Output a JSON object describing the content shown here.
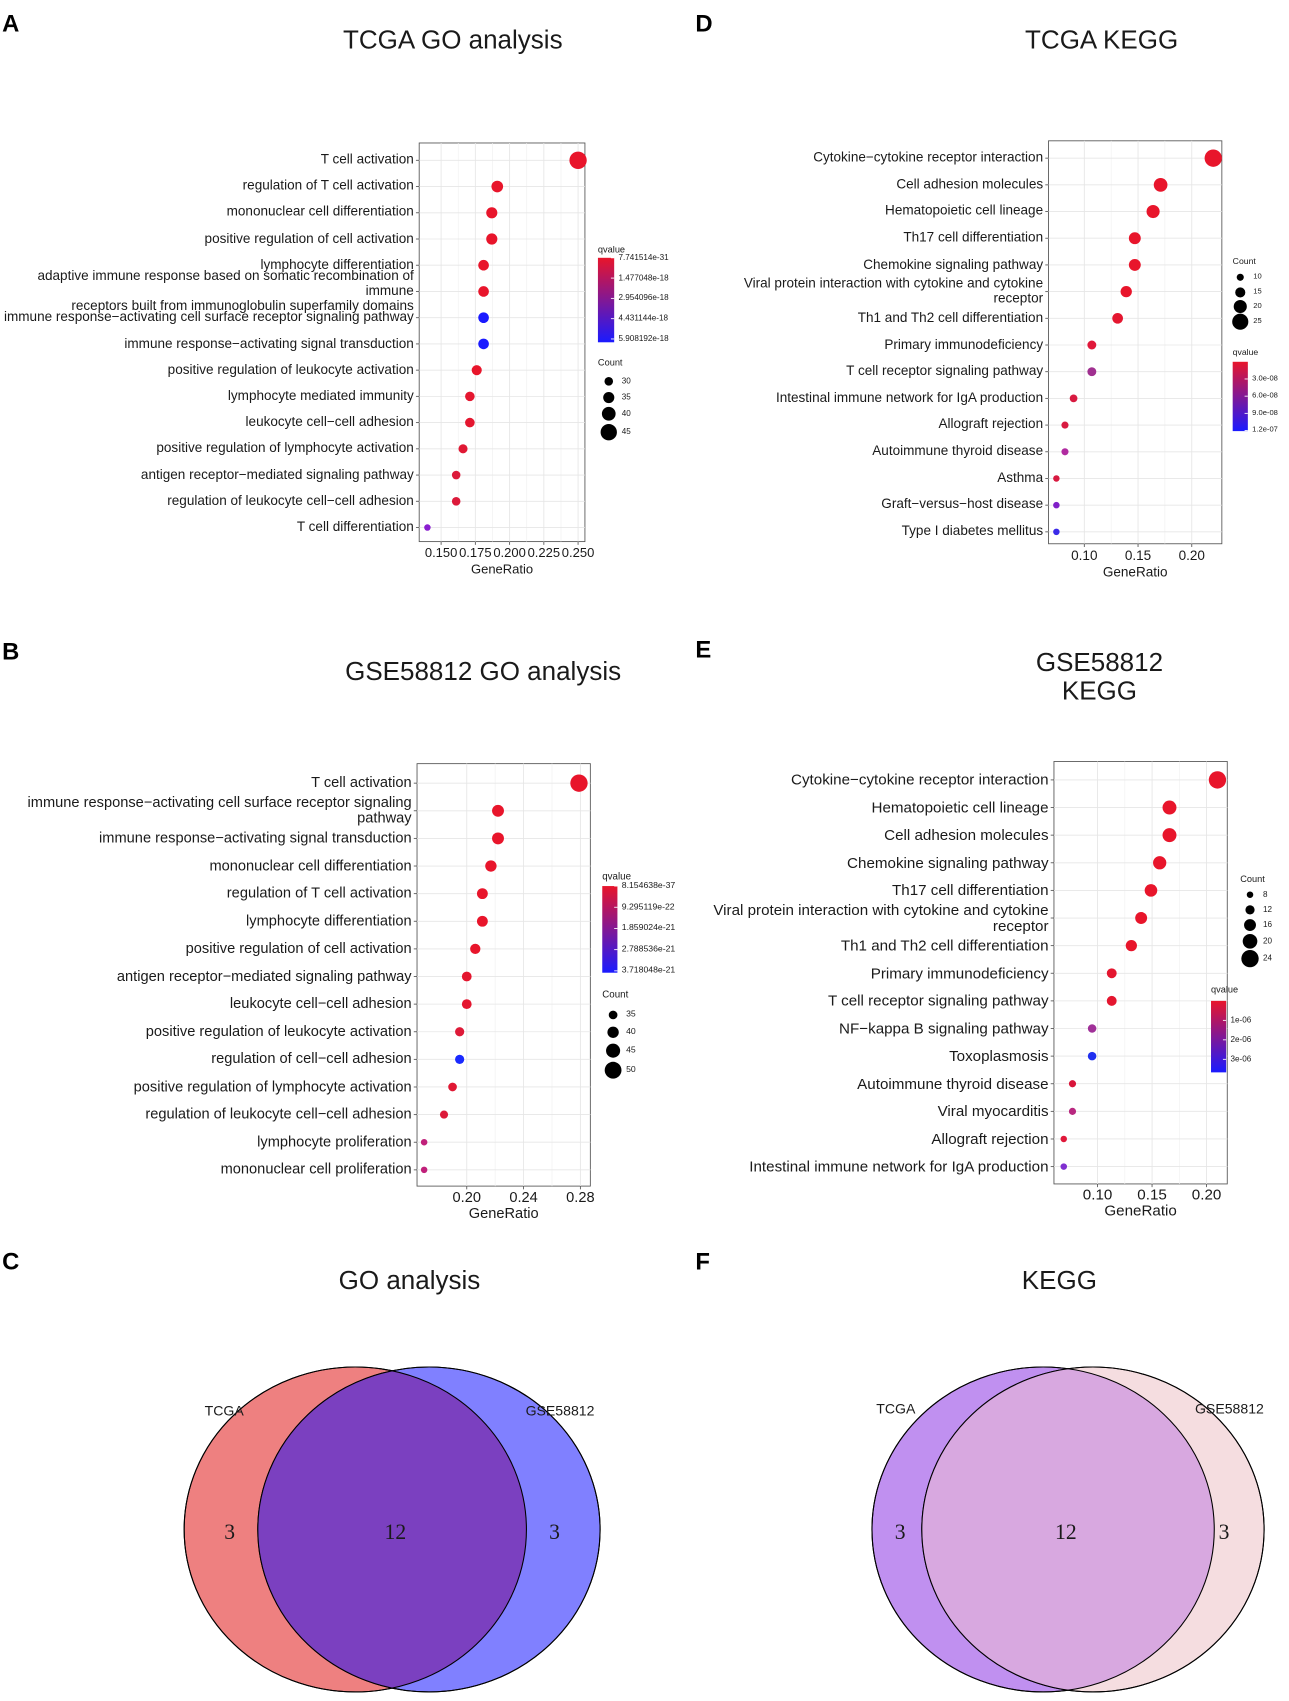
{
  "chart_data": [
    {
      "type": "dot",
      "panel": "A",
      "title": "TCGA GO analysis",
      "xlabel": "GeneRatio",
      "categories": [
        "T cell activation",
        "regulation of T cell activation",
        "mononuclear cell differentiation",
        "positive regulation of cell activation",
        "lymphocyte differentiation",
        "adaptive immune response based on somatic recombination of immune\nreceptors built from immunoglobulin superfamily domains",
        "immune response−activating cell surface receptor signaling pathway",
        "immune response−activating signal transduction",
        "positive regulation of leukocyte activation",
        "lymphocyte mediated immunity",
        "leukocyte cell−cell adhesion",
        "positive regulation of lymphocyte activation",
        "antigen receptor−mediated signaling pathway",
        "regulation of leukocyte cell−cell adhesion",
        "T cell differentiation"
      ],
      "values": [
        0.25,
        0.191,
        0.187,
        0.187,
        0.181,
        0.181,
        0.181,
        0.181,
        0.176,
        0.171,
        0.171,
        0.166,
        0.161,
        0.161,
        0.14
      ],
      "sizes": [
        47,
        36,
        35,
        35,
        34,
        34,
        34,
        34,
        33,
        32,
        32,
        31,
        30,
        30,
        26
      ],
      "colors": [
        "#e8152b",
        "#e8152b",
        "#e8152b",
        "#e8152b",
        "#e8152b",
        "#e8152b",
        "#1a1aff",
        "#1a1aff",
        "#e8152b",
        "#e4162f",
        "#e4162f",
        "#e01834",
        "#dc1a3a",
        "#dc1a3a",
        "#8a1fd0"
      ],
      "xlim": [
        0.134,
        0.255
      ],
      "xticks": [
        {
          "value": 0.15,
          "label": "0.150"
        },
        0.175,
        {
          "value": 0.2,
          "label": "0.200"
        },
        0.225,
        {
          "value": 0.25,
          "label": "0.250"
        }
      ],
      "color_legend_title": "qvalue",
      "clim": [
        0,
        6.15e-18
      ],
      "cticks": [
        {
          "value": 7.741514e-31,
          "label": "7.741514e-31"
        },
        {
          "value": 1.477048e-18,
          "label": "1.477048e-18"
        },
        {
          "value": 2.954096e-18,
          "label": "2.954096e-18"
        },
        {
          "value": 4.431144e-18,
          "label": "4.431144e-18"
        },
        {
          "value": 5.908192e-18,
          "label": "5.908192e-18"
        }
      ],
      "low_color": "#e8152b",
      "high_color": "#1a1aff",
      "size_legend_title": "Count",
      "size_ticks": [
        30,
        35,
        40,
        45
      ],
      "grid": true
    },
    {
      "type": "dot",
      "panel": "B",
      "title": "GSE58812 GO analysis",
      "xlabel": "GeneRatio",
      "categories": [
        "T cell activation",
        "immune response−activating cell surface receptor signaling\npathway",
        "immune response−activating signal transduction",
        "mononuclear cell differentiation",
        "regulation of T cell activation",
        "lymphocyte differentiation",
        "positive regulation of cell activation",
        "antigen receptor−mediated signaling pathway",
        "leukocyte cell−cell adhesion",
        "positive regulation of leukocyte activation",
        "regulation of cell−cell adhesion",
        "positive regulation of lymphocyte activation",
        "regulation of leukocyte cell−cell adhesion",
        "lymphocyte proliferation",
        "mononuclear cell proliferation"
      ],
      "values": [
        0.279,
        0.222,
        0.222,
        0.217,
        0.211,
        0.211,
        0.206,
        0.2,
        0.2,
        0.195,
        0.195,
        0.19,
        0.184,
        0.17,
        0.17
      ],
      "sizes": [
        51,
        41,
        41,
        40,
        39,
        39,
        38,
        37,
        37,
        36,
        36,
        35,
        34,
        31,
        31
      ],
      "colors": [
        "#e8152b",
        "#e8152b",
        "#e8152b",
        "#e8152b",
        "#e8152b",
        "#e8152b",
        "#e8152b",
        "#e4162f",
        "#e4162f",
        "#de1a38",
        "#1a2aff",
        "#e01834",
        "#dc1a3a",
        "#c0207a",
        "#c0207a"
      ],
      "xlim": [
        0.165,
        0.287
      ],
      "xticks": [
        {
          "value": 0.2,
          "label": "0.20"
        },
        0.24,
        0.28
      ],
      "color_legend_title": "qvalue",
      "clim": [
        0,
        3.8e-21
      ],
      "cticks": [
        {
          "value": 8.154638e-37,
          "label": "8.154638e-37"
        },
        {
          "value": 9.295119e-22,
          "label": "9.295119e-22"
        },
        {
          "value": 1.859024e-21,
          "label": "1.859024e-21"
        },
        {
          "value": 2.788536e-21,
          "label": "2.788536e-21"
        },
        {
          "value": 3.718048e-21,
          "label": "3.718048e-21"
        }
      ],
      "low_color": "#e8152b",
      "high_color": "#1a1aff",
      "size_legend_title": "Count",
      "size_ticks": [
        35,
        40,
        45,
        50
      ],
      "grid": true
    },
    {
      "type": "venn",
      "panel": "C",
      "title": "GO analysis",
      "sets": [
        "TCGA",
        "GSE58812"
      ],
      "values": [
        3,
        12,
        3
      ],
      "colors": [
        "#ee8080",
        "#7b40c0",
        "#8080ff"
      ]
    },
    {
      "type": "dot",
      "panel": "D",
      "title": "TCGA KEGG",
      "xlabel": "GeneRatio",
      "categories": [
        "Cytokine−cytokine receptor interaction",
        "Cell adhesion molecules",
        "Hematopoietic cell lineage",
        "Th17 cell differentiation",
        "Chemokine signaling pathway",
        "Viral protein interaction with cytokine and cytokine\nreceptor",
        "Th1 and Th2 cell differentiation",
        "Primary immunodeficiency",
        "T cell receptor signaling pathway",
        "Intestinal immune network for IgA production",
        "Allograft rejection",
        "Autoimmune thyroid disease",
        "Asthma",
        "Graft−versus−host disease",
        "Type I diabetes mellitus"
      ],
      "values": [
        0.22,
        0.171,
        0.164,
        0.147,
        0.147,
        0.139,
        0.131,
        0.107,
        0.107,
        0.09,
        0.082,
        0.082,
        0.074,
        0.074,
        0.074
      ],
      "sizes": [
        27,
        21,
        20,
        18,
        18,
        17,
        16,
        13,
        13,
        11,
        10,
        10,
        9,
        9,
        9
      ],
      "colors": [
        "#e8152b",
        "#e8152b",
        "#e8152b",
        "#e8152b",
        "#e8152b",
        "#e8152b",
        "#e4162f",
        "#e0183a",
        "#a03090",
        "#d81a40",
        "#d81a40",
        "#b02aa0",
        "#d81a40",
        "#8020c8",
        "#3a2ae8"
      ],
      "xlim": [
        0.0667,
        0.228
      ],
      "xticks": [
        {
          "value": 0.1,
          "label": "0.10"
        },
        0.15,
        {
          "value": 0.2,
          "label": "0.20"
        }
      ],
      "color_legend_title": "qvalue",
      "clim": [
        0,
        1.21e-07
      ],
      "cticks": [
        {
          "value": 3e-08,
          "label": "3.0e-08"
        },
        {
          "value": 6e-08,
          "label": "6.0e-08"
        },
        {
          "value": 9e-08,
          "label": "9.0e-08"
        },
        {
          "value": 1.2e-07,
          "label": "1.2e-07"
        }
      ],
      "low_color": "#e8152b",
      "high_color": "#1a1aff",
      "size_legend_title": "Count",
      "size_ticks": [
        10,
        15,
        20,
        25
      ],
      "grid": true
    },
    {
      "type": "dot",
      "panel": "E",
      "title": "GSE58812  KEGG",
      "xlabel": "GeneRatio",
      "categories": [
        "Cytokine−cytokine receptor interaction",
        "Hematopoietic cell lineage",
        "Cell adhesion molecules",
        "Chemokine signaling pathway",
        "Th17 cell differentiation",
        "Viral protein interaction with cytokine and cytokine\nreceptor",
        "Th1 and Th2 cell differentiation",
        "Primary immunodeficiency",
        "T cell receptor signaling pathway",
        "NF−kappa B signaling pathway",
        "Toxoplasmosis",
        "Autoimmune thyroid disease",
        "Viral myocarditis",
        "Allograft rejection",
        "Intestinal immune network for IgA production"
      ],
      "values": [
        0.21,
        0.166,
        0.166,
        0.157,
        0.149,
        0.14,
        0.131,
        0.113,
        0.113,
        0.095,
        0.095,
        0.077,
        0.077,
        0.069,
        0.069
      ],
      "sizes": [
        24,
        19,
        19,
        18,
        17,
        16,
        15,
        13,
        13,
        11,
        11,
        9,
        9,
        8,
        8
      ],
      "colors": [
        "#e8152b",
        "#e8152b",
        "#e8152b",
        "#e8152b",
        "#e8152b",
        "#e8152b",
        "#e8152b",
        "#e4162f",
        "#e4162f",
        "#a03098",
        "#2030f0",
        "#d8153a",
        "#b82880",
        "#e0183a",
        "#8030d0"
      ],
      "xlim": [
        0.06,
        0.219
      ],
      "xticks": [
        {
          "value": 0.1,
          "label": "0.10"
        },
        0.15,
        {
          "value": 0.2,
          "label": "0.20"
        }
      ],
      "color_legend_title": "qvalue",
      "clim": [
        0,
        3.67e-06
      ],
      "cticks": [
        {
          "value": 1e-06,
          "label": "1e-06"
        },
        {
          "value": 2e-06,
          "label": "2e-06"
        },
        {
          "value": 3e-06,
          "label": "3e-06"
        }
      ],
      "low_color": "#e8152b",
      "high_color": "#1a1aff",
      "size_legend_title": "Count",
      "size_ticks": [
        8,
        12,
        16,
        20,
        24
      ],
      "grid": true
    },
    {
      "type": "venn",
      "panel": "F",
      "title": "KEGG",
      "sets": [
        "TCGA",
        "GSE58812"
      ],
      "values": [
        3,
        12,
        3
      ],
      "colors": [
        "#c090f0",
        "#d8a8e0",
        "#f5dde0"
      ]
    }
  ]
}
